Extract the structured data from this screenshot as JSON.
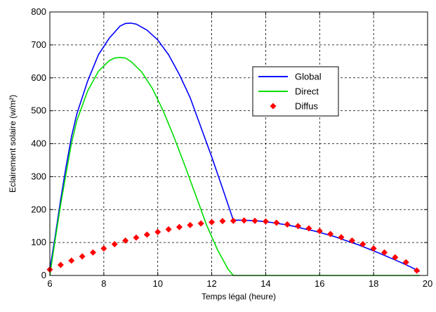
{
  "chart_data": {
    "type": "line",
    "xlabel": "Temps légal (heure)",
    "ylabel": "Eclairement solaire (w/m²)",
    "xlim": [
      6,
      20
    ],
    "ylim": [
      0,
      800
    ],
    "xticks": [
      6,
      8,
      10,
      12,
      14,
      16,
      18,
      20
    ],
    "yticks": [
      0,
      100,
      200,
      300,
      400,
      500,
      600,
      700,
      800
    ],
    "grid": true,
    "legend_position": "upper-right",
    "series": [
      {
        "name": "Global",
        "style": "line",
        "color": "#0000ff",
        "x": [
          6.0,
          6.2,
          6.4,
          6.6,
          6.8,
          7.0,
          7.4,
          7.8,
          8.2,
          8.6,
          8.8,
          9.0,
          9.2,
          9.6,
          10.0,
          10.4,
          10.8,
          11.2,
          11.6,
          12.0,
          12.4,
          12.8,
          13.0,
          13.4,
          13.8,
          14.2,
          14.6,
          15.0,
          15.4,
          15.8,
          16.2,
          16.6,
          17.0,
          17.4,
          17.8,
          18.2,
          18.6,
          19.0,
          19.4,
          19.7
        ],
        "y": [
          18,
          120,
          230,
          330,
          420,
          490,
          590,
          670,
          720,
          757,
          765,
          766,
          763,
          745,
          715,
          670,
          610,
          540,
          450,
          360,
          265,
          168,
          168,
          167,
          165,
          161,
          156,
          150,
          142,
          135,
          126,
          117,
          105,
          94,
          81,
          68,
          54,
          40,
          25,
          12
        ]
      },
      {
        "name": "Direct",
        "style": "line",
        "color": "#00dd00",
        "x": [
          6.0,
          6.2,
          6.4,
          6.6,
          6.8,
          7.0,
          7.4,
          7.8,
          8.2,
          8.4,
          8.6,
          8.8,
          9.0,
          9.4,
          9.8,
          10.2,
          10.6,
          11.0,
          11.4,
          11.8,
          12.2,
          12.6,
          12.8,
          13.0,
          14.0,
          15.0,
          16.0,
          17.0,
          18.0,
          19.0,
          19.7
        ],
        "y": [
          0,
          110,
          215,
          310,
          400,
          470,
          560,
          620,
          652,
          660,
          662,
          660,
          650,
          618,
          568,
          500,
          420,
          335,
          245,
          155,
          80,
          20,
          0,
          0,
          0,
          0,
          0,
          0,
          0,
          0,
          0
        ]
      },
      {
        "name": "Diffus",
        "style": "markers",
        "color": "#ff0000",
        "x": [
          6.0,
          6.4,
          6.8,
          7.2,
          7.6,
          8.0,
          8.4,
          8.8,
          9.2,
          9.6,
          10.0,
          10.4,
          10.8,
          11.2,
          11.6,
          12.0,
          12.4,
          12.8,
          13.2,
          13.6,
          14.0,
          14.4,
          14.8,
          15.2,
          15.6,
          16.0,
          16.4,
          16.8,
          17.2,
          17.6,
          18.0,
          18.4,
          18.8,
          19.2,
          19.6
        ],
        "y": [
          18,
          32,
          45,
          58,
          70,
          82,
          95,
          106,
          115,
          124,
          132,
          140,
          147,
          153,
          158,
          162,
          165,
          166,
          167,
          166,
          164,
          160,
          155,
          150,
          143,
          135,
          126,
          116,
          106,
          95,
          82,
          70,
          55,
          40,
          15
        ]
      }
    ]
  }
}
